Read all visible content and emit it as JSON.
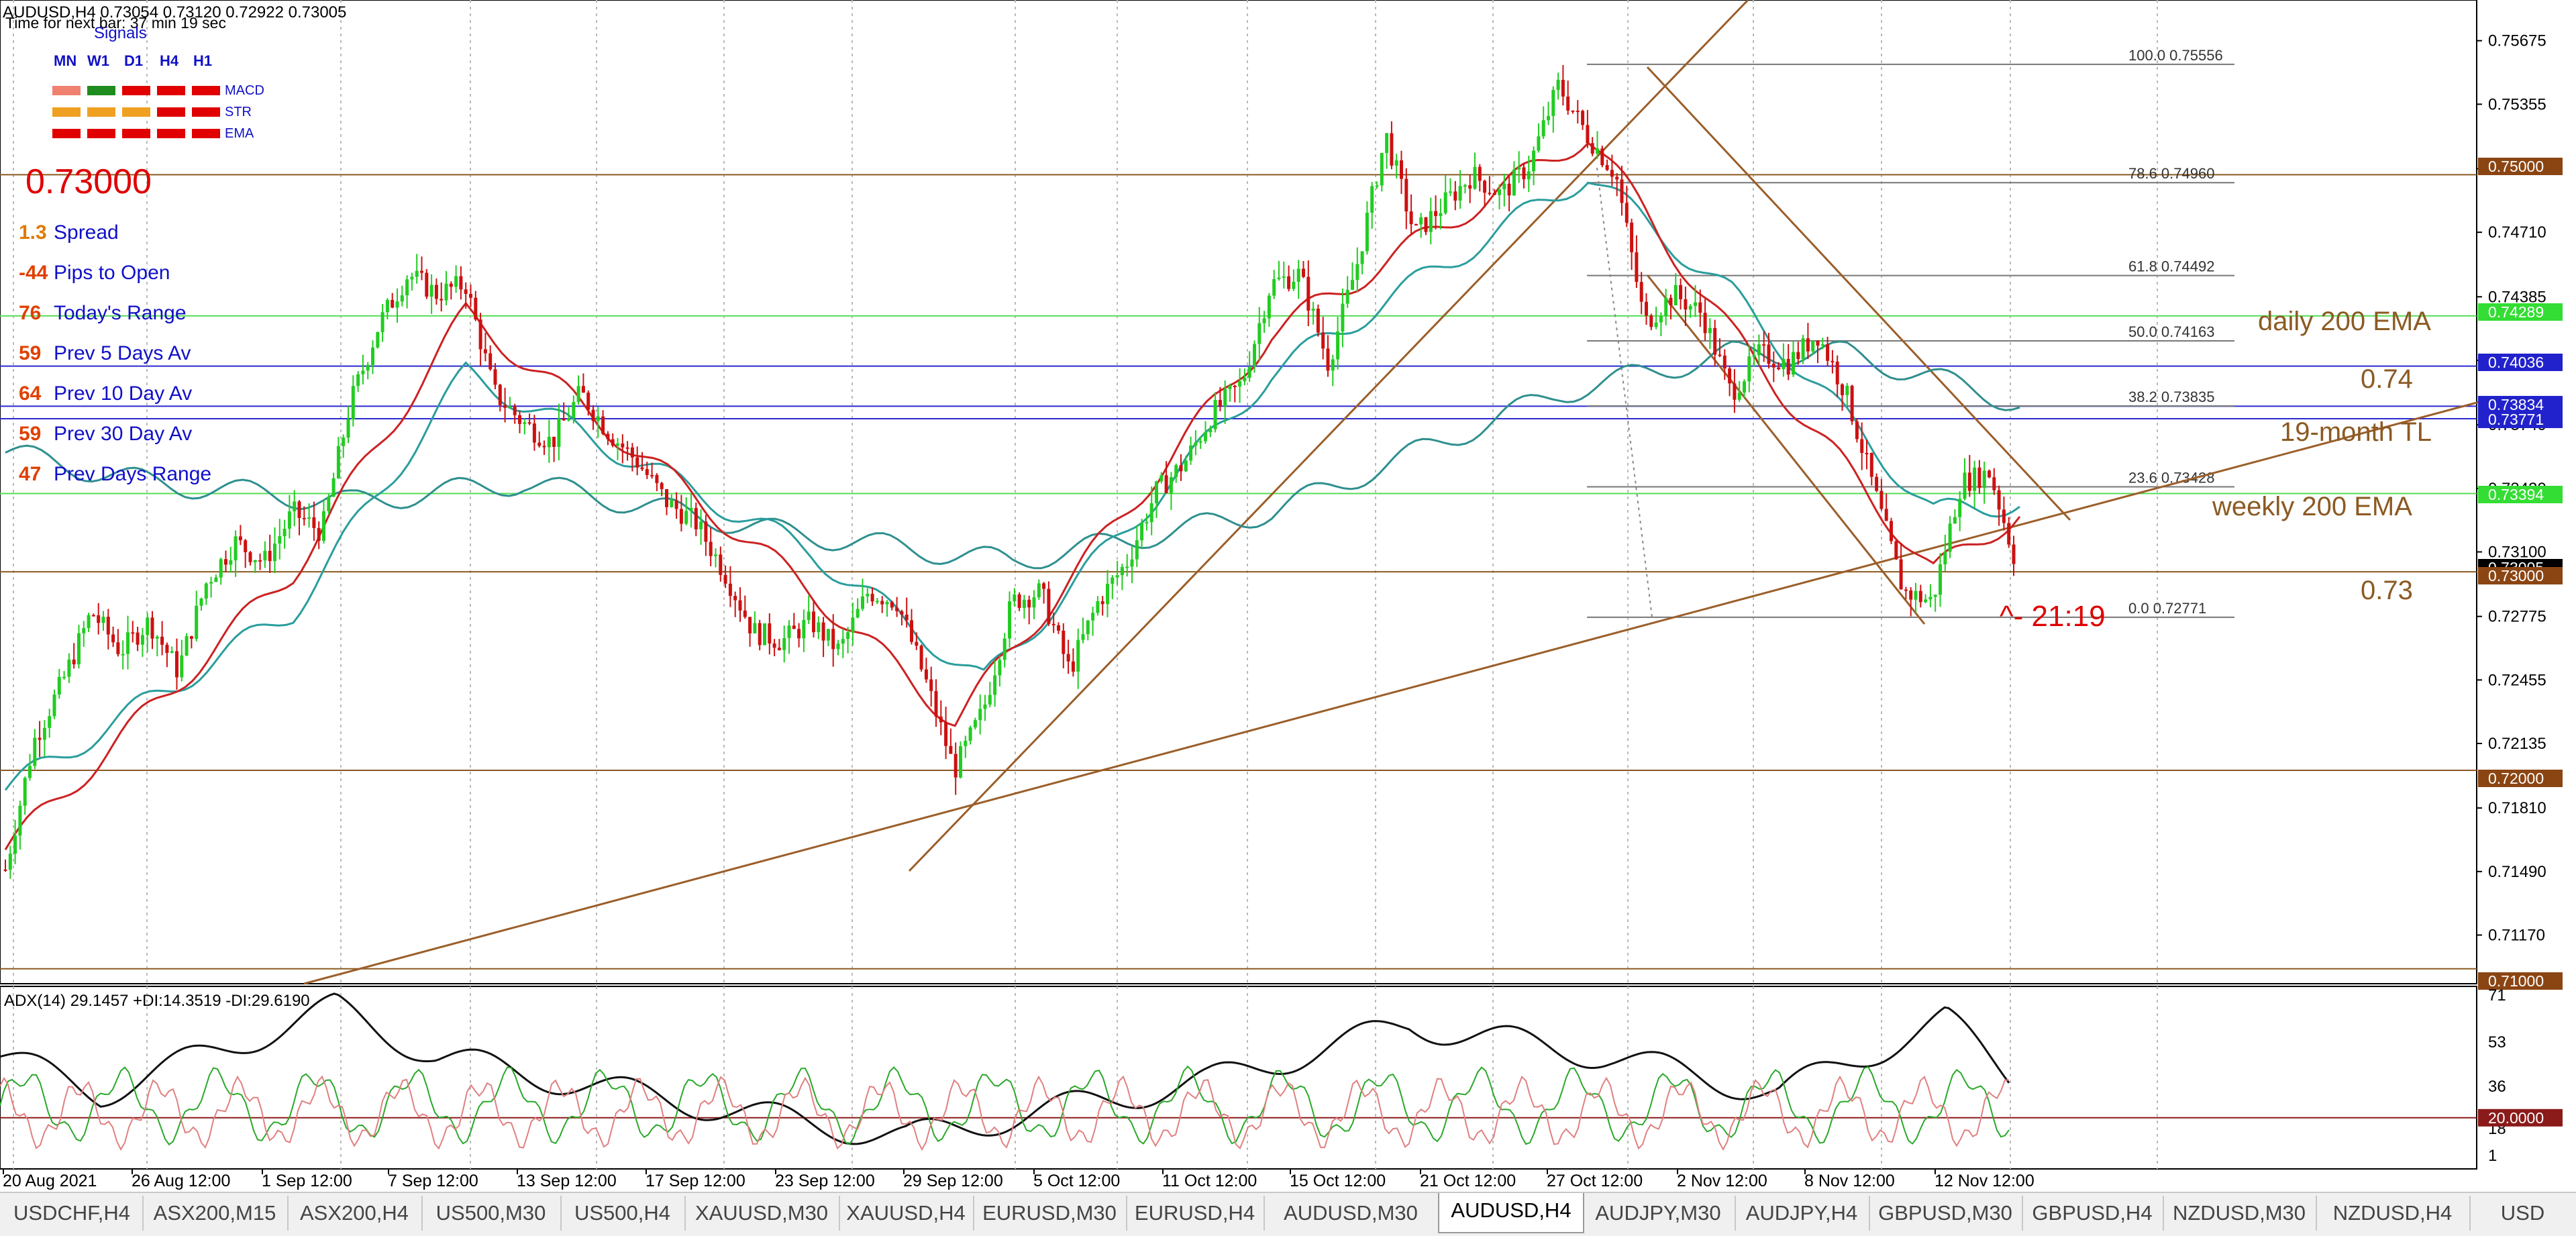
{
  "symbol_header": "AUDUSD,H4  0.73054 0.73120 0.72922 0.73005",
  "timer_text": "Time for next bar: 37 min 19 sec",
  "signals": {
    "title": "Signals",
    "timeframes": [
      "MN",
      "W1",
      "D1",
      "H4",
      "H1"
    ],
    "rows": [
      {
        "label": "MACD",
        "colors": [
          "#f08070",
          "#1e8c1e",
          "#e00000",
          "#e00000",
          "#e00000"
        ]
      },
      {
        "label": "STR",
        "colors": [
          "#f0a020",
          "#f0a020",
          "#f0a020",
          "#e00000",
          "#e00000"
        ]
      },
      {
        "label": "EMA",
        "colors": [
          "#e00000",
          "#e00000",
          "#e00000",
          "#e00000",
          "#e00000"
        ]
      }
    ]
  },
  "current_price": "0.73000",
  "stats": [
    {
      "value": "1.3",
      "label": "Spread",
      "color": "#e07a00"
    },
    {
      "value": "-44",
      "label": "Pips to Open",
      "color": "#e04000"
    },
    {
      "value": "76",
      "label": "Today's Range",
      "color": "#e04000"
    },
    {
      "value": "59",
      "label": "Prev 5 Days Av",
      "color": "#e04000"
    },
    {
      "value": "64",
      "label": "Prev 10 Day Av",
      "color": "#e04000"
    },
    {
      "value": "59",
      "label": "Prev 30 Day Av",
      "color": "#e04000"
    },
    {
      "value": "47",
      "label": "Prev Days Range",
      "color": "#e04000"
    }
  ],
  "price_axis_ticks": [
    "0.75675",
    "0.75355",
    "0.75030",
    "0.74710",
    "0.74385",
    "0.74065",
    "0.73740",
    "0.73420",
    "0.73100",
    "0.72775",
    "0.72455",
    "0.72135",
    "0.71810",
    "0.71490",
    "0.71170"
  ],
  "price_tags": [
    {
      "text": "0.75000",
      "bg": "#8b4513"
    },
    {
      "text": "0.74289",
      "bg": "#33dd33"
    },
    {
      "text": "0.74036",
      "bg": "#2222cc"
    },
    {
      "text": "0.73834",
      "bg": "#2222cc"
    },
    {
      "text": "0.73771",
      "bg": "#2222cc"
    },
    {
      "text": "0.73394",
      "bg": "#33dd33"
    },
    {
      "text": "0.73005",
      "bg": "#000000"
    },
    {
      "text": "0.73000",
      "bg": "#8b4513"
    },
    {
      "text": "0.72000",
      "bg": "#8b4513"
    },
    {
      "text": "0.71000",
      "bg": "#8b4513"
    }
  ],
  "fib_levels": [
    {
      "ratio": "100.0",
      "price": "0.75556"
    },
    {
      "ratio": "78.6",
      "price": "0.74960"
    },
    {
      "ratio": "61.8",
      "price": "0.74492"
    },
    {
      "ratio": "50.0",
      "price": "0.74163"
    },
    {
      "ratio": "38.2",
      "price": "0.73835"
    },
    {
      "ratio": "23.6",
      "price": "0.73428"
    },
    {
      "ratio": "0.0",
      "price": "0.72771"
    }
  ],
  "annotations": [
    "daily 200 EMA",
    "0.74",
    "19-month TL",
    "weekly 200 EMA",
    "0.73"
  ],
  "countdown": "^- 21:19",
  "adx": {
    "header": "ADX(14) 29.1457 +DI:14.3519 -DI:29.6190",
    "ticks": [
      "71",
      "53",
      "36",
      "18",
      "1"
    ],
    "level_tag": "20.0000"
  },
  "time_axis": [
    "20 Aug 2021",
    "26 Aug 12:00",
    "1 Sep 12:00",
    "7 Sep 12:00",
    "13 Sep 12:00",
    "17 Sep 12:00",
    "23 Sep 12:00",
    "29 Sep 12:00",
    "5 Oct 12:00",
    "11 Oct 12:00",
    "15 Oct 12:00",
    "21 Oct 12:00",
    "27 Oct 12:00",
    "2 Nov 12:00",
    "8 Nov 12:00",
    "12 Nov 12:00"
  ],
  "tabs": [
    "USDCHF,H4",
    "ASX200,M15",
    "ASX200,H4",
    "US500,M30",
    "US500,H4",
    "XAUUSD,M30",
    "XAUUSD,H4",
    "EURUSD,M30",
    "EURUSD,H4",
    "AUDUSD,M30",
    "AUDUSD,H4",
    "AUDJPY,M30",
    "AUDJPY,H4",
    "GBPUSD,M30",
    "GBPUSD,H4",
    "NZDUSD,M30",
    "NZDUSD,H4",
    "USD"
  ],
  "active_tab": "AUDUSD,H4",
  "chart_data": {
    "type": "candlestick",
    "symbol": "AUDUSD",
    "timeframe": "H4",
    "ylim": [
      0.71,
      0.7575
    ],
    "close_path": [
      [
        0,
        0.715
      ],
      [
        1,
        0.7215
      ],
      [
        2,
        0.7245
      ],
      [
        3,
        0.728
      ],
      [
        4,
        0.726
      ],
      [
        5,
        0.7275
      ],
      [
        6,
        0.725
      ],
      [
        7,
        0.7295
      ],
      [
        8,
        0.7315
      ],
      [
        9,
        0.7305
      ],
      [
        10,
        0.733
      ],
      [
        11,
        0.732
      ],
      [
        12,
        0.7385
      ],
      [
        13,
        0.7425
      ],
      [
        14,
        0.745
      ],
      [
        15,
        0.744
      ],
      [
        16,
        0.7445
      ],
      [
        17,
        0.739
      ],
      [
        18,
        0.7375
      ],
      [
        19,
        0.7365
      ],
      [
        20,
        0.739
      ],
      [
        21,
        0.737
      ],
      [
        22,
        0.7355
      ],
      [
        23,
        0.7335
      ],
      [
        24,
        0.7325
      ],
      [
        25,
        0.73
      ],
      [
        26,
        0.727
      ],
      [
        27,
        0.7265
      ],
      [
        28,
        0.7275
      ],
      [
        29,
        0.726
      ],
      [
        30,
        0.729
      ],
      [
        31,
        0.7285
      ],
      [
        32,
        0.7245
      ],
      [
        33,
        0.72
      ],
      [
        34,
        0.723
      ],
      [
        35,
        0.7285
      ],
      [
        36,
        0.729
      ],
      [
        37,
        0.725
      ],
      [
        38,
        0.7285
      ],
      [
        39,
        0.7305
      ],
      [
        40,
        0.734
      ],
      [
        41,
        0.7355
      ],
      [
        42,
        0.738
      ],
      [
        43,
        0.7395
      ],
      [
        44,
        0.7445
      ],
      [
        45,
        0.745
      ],
      [
        46,
        0.7405
      ],
      [
        47,
        0.7455
      ],
      [
        48,
        0.752
      ],
      [
        49,
        0.747
      ],
      [
        50,
        0.7485
      ],
      [
        51,
        0.75
      ],
      [
        52,
        0.749
      ],
      [
        53,
        0.7505
      ],
      [
        54,
        0.7545
      ],
      [
        55,
        0.752
      ],
      [
        56,
        0.75
      ],
      [
        57,
        0.7425
      ],
      [
        58,
        0.744
      ],
      [
        59,
        0.743
      ],
      [
        60,
        0.739
      ],
      [
        61,
        0.741
      ],
      [
        62,
        0.7405
      ],
      [
        63,
        0.742
      ],
      [
        64,
        0.739
      ],
      [
        65,
        0.734
      ],
      [
        66,
        0.729
      ],
      [
        67,
        0.7285
      ],
      [
        68,
        0.7345
      ],
      [
        69,
        0.735
      ],
      [
        70,
        0.73
      ]
    ],
    "ema_fast": [
      [
        0,
        0.716
      ],
      [
        10,
        0.73
      ],
      [
        16,
        0.743
      ],
      [
        28,
        0.729
      ],
      [
        33,
        0.7225
      ],
      [
        44,
        0.742
      ],
      [
        55,
        0.752
      ],
      [
        60,
        0.742
      ],
      [
        67,
        0.73
      ],
      [
        70,
        0.733
      ]
    ],
    "ema_mid": [
      [
        0,
        0.719
      ],
      [
        10,
        0.728
      ],
      [
        16,
        0.74
      ],
      [
        28,
        0.731
      ],
      [
        34,
        0.7245
      ],
      [
        44,
        0.74
      ],
      [
        55,
        0.75
      ],
      [
        60,
        0.744
      ],
      [
        67,
        0.733
      ],
      [
        70,
        0.7335
      ]
    ],
    "ema_slow": [
      [
        0,
        0.736
      ],
      [
        5,
        0.7345
      ],
      [
        12,
        0.7335
      ],
      [
        18,
        0.7345
      ],
      [
        27,
        0.732
      ],
      [
        35,
        0.7305
      ],
      [
        44,
        0.733
      ],
      [
        54,
        0.739
      ],
      [
        60,
        0.741
      ],
      [
        64,
        0.741
      ],
      [
        70,
        0.7385
      ]
    ],
    "horizontal_levels": [
      0.75,
      0.73,
      0.72,
      0.71
    ],
    "adx_range": [
      1,
      71
    ],
    "adx_level": 20,
    "grid": true
  }
}
